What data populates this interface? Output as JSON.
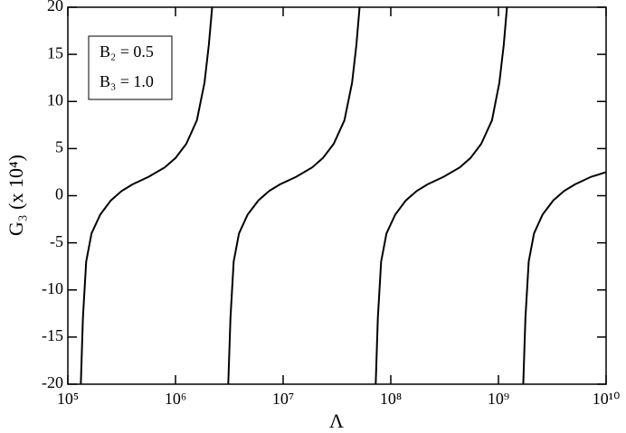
{
  "chart_data": {
    "type": "line",
    "x_label": "Λ",
    "y_label": "G₃ (x 10⁴)",
    "annotations": [
      "B₂ = 0.5",
      "B₃ = 1.0"
    ],
    "x_scale": "log",
    "xlim": [
      100000,
      10000000000
    ],
    "xticks": [
      {
        "value": 100000,
        "label": "10⁵"
      },
      {
        "value": 1000000,
        "label": "10⁶"
      },
      {
        "value": 10000000,
        "label": "10⁷"
      },
      {
        "value": 100000000,
        "label": "10⁸"
      },
      {
        "value": 1000000000,
        "label": "10⁹"
      },
      {
        "value": 10000000000,
        "label": "10¹⁰"
      }
    ],
    "ylim": [
      -20,
      20
    ],
    "yticks": [
      -20,
      -15,
      -10,
      -5,
      0,
      5,
      10,
      15,
      20
    ],
    "x": [
      132000.0,
      138000.0,
      148000.0,
      166000.0,
      200000.0,
      251000.0,
      316000.0,
      398000.0,
      562000.0,
      794000.0,
      1000000.0,
      1260000.0,
      1580000.0,
      1860000.0,
      2040000.0,
      2190000.0,
      null,
      3090000.0,
      3240000.0,
      3470000.0,
      3890000.0,
      4680000.0,
      5890000.0,
      7410000.0,
      9330000.0,
      13200000.0,
      18600000.0,
      23400000.0,
      29500000.0,
      37100000.0,
      43700000.0,
      47900000.0,
      51300000.0,
      null,
      72400000.0,
      75800000.0,
      81300000.0,
      91200000.0,
      110000000.0,
      138000000.0,
      174000000.0,
      219000000.0,
      309000000.0,
      437000000.0,
      550000000.0,
      692000000.0,
      871000000.0,
      1020000000.0,
      1120000000.0,
      1200000000.0,
      null,
      1700000000.0,
      1780000000.0,
      1910000000.0,
      2140000000.0,
      2570000000.0,
      3230000000.0,
      4070000000.0,
      5130000000.0,
      7240000000.0,
      10000000000.0
    ],
    "series": [
      {
        "color": "#000000",
        "values": [
          -20,
          -13,
          -7,
          -4,
          -2,
          -0.5,
          0.5,
          1.2,
          2,
          3,
          4,
          5.5,
          8,
          12,
          16,
          20,
          null,
          -20,
          -13,
          -7,
          -4,
          -2,
          -0.5,
          0.5,
          1.2,
          2,
          3,
          4,
          5.5,
          8,
          12,
          16,
          20,
          null,
          -20,
          -13,
          -7,
          -4,
          -2,
          -0.5,
          0.5,
          1.2,
          2,
          3,
          4,
          5.5,
          8,
          12,
          16,
          20,
          null,
          -20,
          -13,
          -7,
          -4,
          -2,
          -0.5,
          0.5,
          1.2,
          2,
          2.5
        ]
      }
    ]
  }
}
